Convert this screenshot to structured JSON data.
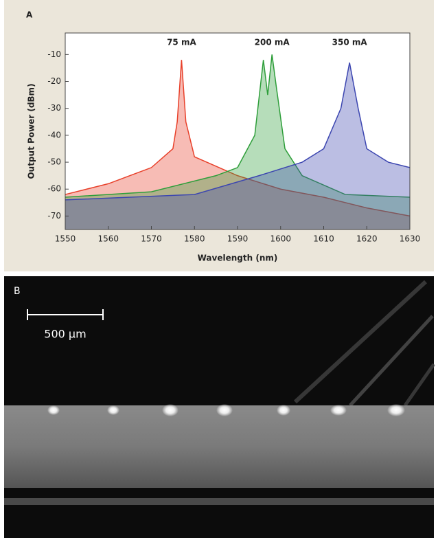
{
  "panel_labels": [
    "A",
    "B"
  ],
  "scale_bar": "500 µm",
  "chart_data": {
    "type": "line",
    "xlabel": "Wavelength (nm)",
    "ylabel": "Output Power (dBm)",
    "xlim": [
      1550,
      1630
    ],
    "xticks": [
      1550,
      1560,
      1570,
      1580,
      1590,
      1600,
      1610,
      1620,
      1630
    ],
    "ylim": [
      -75,
      -2
    ],
    "yticks": [
      -10,
      -20,
      -30,
      -40,
      -50,
      -60,
      -70
    ],
    "series": [
      {
        "name": "75 mA",
        "color": "#e8402a",
        "x": [
          1550,
          1560,
          1570,
          1575,
          1576,
          1577,
          1578,
          1580,
          1590,
          1600,
          1610,
          1620,
          1630
        ],
        "values": [
          -62,
          -58,
          -52,
          -45,
          -35,
          -12,
          -35,
          -48,
          -55,
          -60,
          -63,
          -67,
          -70
        ]
      },
      {
        "name": "200 mA",
        "color": "#2e9e3a",
        "x": [
          1550,
          1570,
          1585,
          1590,
          1594,
          1596,
          1597,
          1598,
          1599,
          1601,
          1605,
          1615,
          1630
        ],
        "values": [
          -63,
          -61,
          -55,
          -52,
          -40,
          -12,
          -25,
          -10,
          -22,
          -45,
          -55,
          -62,
          -63
        ]
      },
      {
        "name": "350 mA",
        "color": "#3c46b0",
        "x": [
          1550,
          1580,
          1595,
          1605,
          1610,
          1614,
          1616,
          1618,
          1620,
          1625,
          1630
        ],
        "values": [
          -64,
          -62,
          -55,
          -50,
          -45,
          -30,
          -13,
          -30,
          -45,
          -50,
          -52
        ]
      }
    ]
  }
}
